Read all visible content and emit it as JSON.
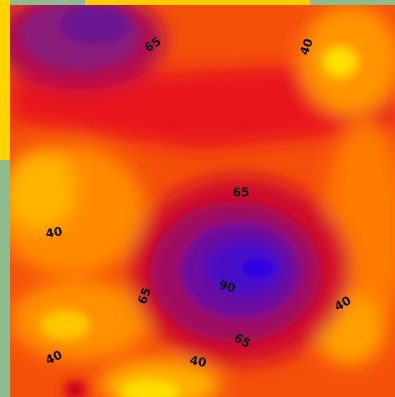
{
  "chart_data": {
    "type": "contour",
    "contour_labels": [
      65,
      40,
      65,
      40,
      65,
      90,
      40,
      65,
      40,
      40
    ]
  }
}
